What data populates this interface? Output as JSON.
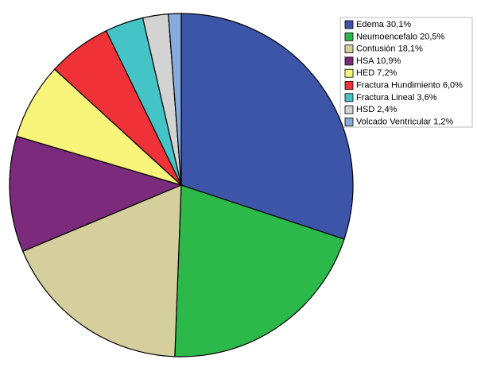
{
  "chart_data": {
    "type": "pie",
    "categories": [
      "Edema",
      "Neumoencefalo",
      "Contusión",
      "HSA",
      "HED",
      "Fractura Hundimiento",
      "Fractura Lineal",
      "HSD",
      "Volcado Ventricular"
    ],
    "values": [
      30.1,
      20.5,
      18.1,
      10.9,
      7.2,
      6.0,
      3.6,
      2.4,
      1.2
    ],
    "value_labels": [
      "30,1%",
      "20,5%",
      "18,1%",
      "10,9%",
      "7,2%",
      "6,0%",
      "3,6%",
      "2,4%",
      "1,2%"
    ],
    "colors": [
      "#3d55a8",
      "#2db84a",
      "#d4cf9d",
      "#7b2a7c",
      "#f8f57a",
      "#ee3237",
      "#45c4c8",
      "#d3d3d3",
      "#88abde"
    ],
    "legend": "upper right"
  }
}
